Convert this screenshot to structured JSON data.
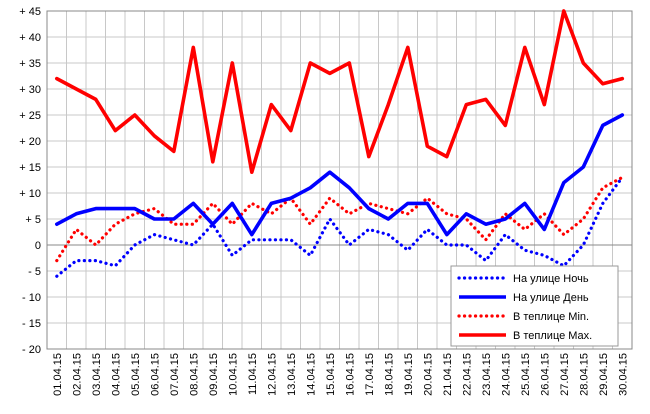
{
  "chart_data": {
    "type": "line",
    "title": "",
    "xlabel": "",
    "ylabel": "",
    "ylim": [
      -20,
      45
    ],
    "y_tick_step": 5,
    "y_tick_labels": [
      "- 20",
      "- 15",
      "- 10",
      "- 5",
      "0",
      "+ 5",
      "+ 10",
      "+ 15",
      "+ 20",
      "+ 25",
      "+ 30",
      "+ 35",
      "+ 40",
      "+ 45"
    ],
    "grid": true,
    "legend_position": "bottom-right",
    "categories": [
      "01.04.15",
      "02.04.15",
      "03.04.15",
      "04.04.15",
      "05.04.15",
      "06.04.15",
      "07.04.15",
      "08.04.15",
      "09.04.15",
      "10.04.15",
      "11.04.15",
      "12.04.15",
      "13.04.15",
      "14.04.15",
      "15.04.15",
      "16.04.15",
      "17.04.15",
      "18.04.15",
      "19.04.15",
      "20.04.15",
      "21.04.15",
      "22.04.15",
      "23.04.15",
      "24.04.15",
      "25.04.15",
      "26.04.15",
      "27.04.15",
      "28.04.15",
      "29.04.15",
      "30.04.15"
    ],
    "series": [
      {
        "name": "На улице Ночь",
        "color": "#0000ff",
        "style": "dotted",
        "values": [
          -6,
          -3,
          -3,
          -4,
          0,
          2,
          1,
          0,
          4,
          -2,
          1,
          1,
          1,
          -2,
          5,
          0,
          3,
          2,
          -1,
          3,
          0,
          0,
          -3,
          2,
          -1,
          -2,
          -4,
          0,
          8,
          13
        ]
      },
      {
        "name": "На улице День",
        "color": "#0000ff",
        "style": "solid",
        "values": [
          4,
          6,
          7,
          7,
          7,
          5,
          5,
          8,
          4,
          8,
          2,
          8,
          9,
          11,
          14,
          11,
          7,
          5,
          8,
          8,
          2,
          6,
          4,
          5,
          8,
          3,
          12,
          15,
          23,
          25
        ]
      },
      {
        "name": "В теплице  Min.",
        "color": "#ff0000",
        "style": "dotted",
        "values": [
          -3,
          3,
          0,
          4,
          6,
          7,
          4,
          4,
          8,
          4,
          8,
          6,
          9,
          4,
          9,
          6,
          8,
          7,
          6,
          9,
          6,
          5,
          1,
          6,
          3,
          6,
          2,
          5,
          11,
          13
        ]
      },
      {
        "name": "В теплице  Max.",
        "color": "#ff0000",
        "style": "solid",
        "values": [
          32,
          30,
          28,
          22,
          25,
          21,
          18,
          38,
          16,
          35,
          14,
          27,
          22,
          35,
          33,
          35,
          17,
          27,
          38,
          19,
          17,
          27,
          28,
          23,
          38,
          27,
          45,
          35,
          31,
          32
        ]
      }
    ]
  }
}
